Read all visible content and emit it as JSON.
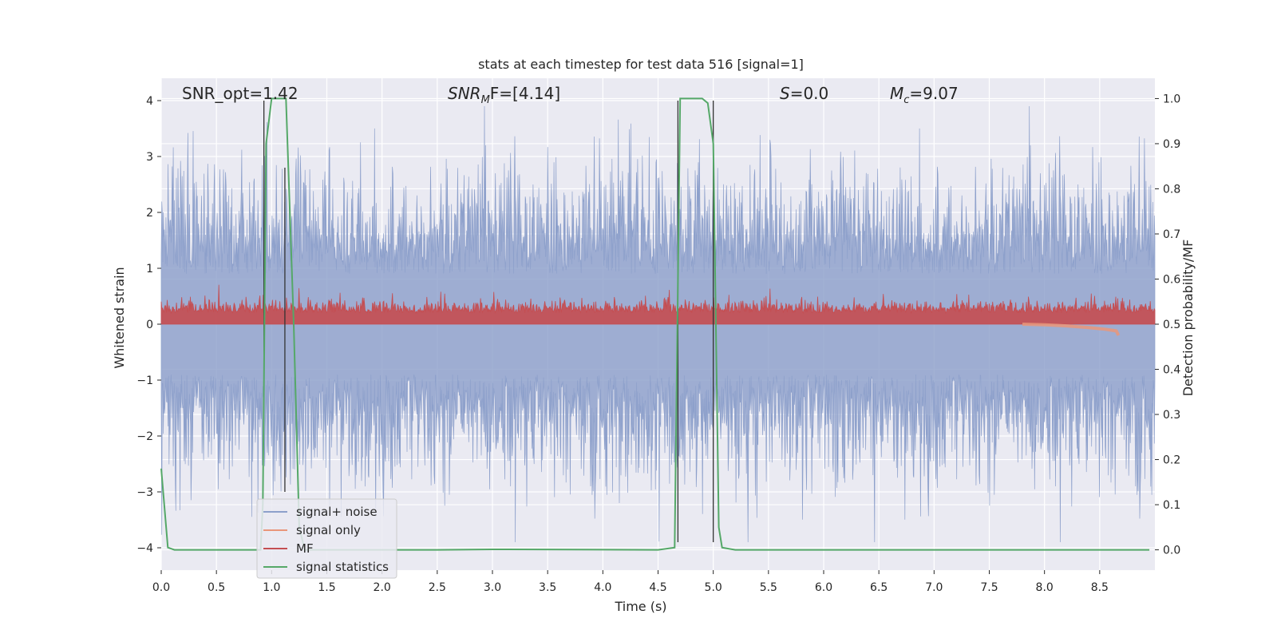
{
  "chart_data": {
    "type": "line",
    "title": "stats at each timestep for test data 516 [signal=1]",
    "xlabel": "Time (s)",
    "ylabel": "Whitened strain",
    "y2label": "Detection probability/MF",
    "xlim": [
      0.0,
      9.0
    ],
    "ylim": [
      -4.4,
      4.4
    ],
    "y2lim": [
      -0.045,
      1.045
    ],
    "xticks": [
      "0.0",
      "0.5",
      "1.0",
      "1.5",
      "2.0",
      "2.5",
      "3.0",
      "3.5",
      "4.0",
      "4.5",
      "5.0",
      "5.5",
      "6.0",
      "6.5",
      "7.0",
      "7.5",
      "8.0",
      "8.5"
    ],
    "yticks": [
      "4",
      "3",
      "2",
      "1",
      "0",
      "−1",
      "−2",
      "−3",
      "−4"
    ],
    "y2ticks": [
      "1.0",
      "0.9",
      "0.8",
      "0.7",
      "0.6",
      "0.5",
      "0.4",
      "0.3",
      "0.2",
      "0.1",
      "0.0"
    ],
    "grid": true,
    "legend_position": "lower-left",
    "annotations": {
      "snr_opt": "SNR_opt=1.42",
      "snr_mf": "SNR",
      "snr_mf_sub": "M",
      "snr_mf_rest": "F=[4.14]",
      "s": "S",
      "s_rest": "=0.0",
      "mc": "M",
      "mc_sub": "c",
      "mc_rest": "=9.07"
    },
    "series": [
      {
        "name": "signal+ noise",
        "color": "#8da0cb",
        "axis": "left",
        "envelope": {
          "x_range": [
            0.0,
            9.0
          ],
          "mean": 0.0,
          "typical_amplitude": 1.6,
          "max_amplitude": 3.9
        }
      },
      {
        "name": "signal only",
        "color": "#e9967a",
        "axis": "left",
        "x": [
          7.8,
          8.0,
          8.2,
          8.4,
          8.55,
          8.65,
          8.67
        ],
        "y": [
          0.0,
          -0.01,
          -0.03,
          -0.06,
          -0.09,
          -0.12,
          -0.2
        ]
      },
      {
        "name": "MF",
        "color": "#c44e52",
        "axis": "right",
        "envelope": {
          "x_range": [
            0.0,
            9.0
          ],
          "base": 0.5,
          "typical_max": 0.58,
          "max": 0.61
        }
      },
      {
        "name": "signal statistics",
        "color": "#55a868",
        "axis": "right",
        "x": [
          0.0,
          0.06,
          0.12,
          0.9,
          0.92,
          0.95,
          1.0,
          1.1,
          1.13,
          1.2,
          1.25,
          1.3,
          2.5,
          3.0,
          4.5,
          4.65,
          4.7,
          4.75,
          4.9,
          4.95,
          5.0,
          5.05,
          5.08,
          5.2,
          7.0,
          8.95
        ],
        "y": [
          0.18,
          0.005,
          0.0,
          0.0,
          0.1,
          0.9,
          1.0,
          1.0,
          1.0,
          0.5,
          0.05,
          0.0,
          0.0,
          0.001,
          0.0,
          0.005,
          1.0,
          1.0,
          1.0,
          0.99,
          0.9,
          0.05,
          0.005,
          0.0,
          0.0,
          0.0
        ]
      }
    ],
    "vertical_markers": {
      "color": "#333333",
      "lines": [
        {
          "x": 0.93,
          "y_top": 4.0,
          "y_bottom": -1.0
        },
        {
          "x": 1.12,
          "y_top": 2.8,
          "y_bottom": -3.0
        },
        {
          "x": 4.68,
          "y_top": 4.0,
          "y_bottom": -3.9
        },
        {
          "x": 5.0,
          "y_top": 4.0,
          "y_bottom": -3.9
        }
      ]
    }
  }
}
